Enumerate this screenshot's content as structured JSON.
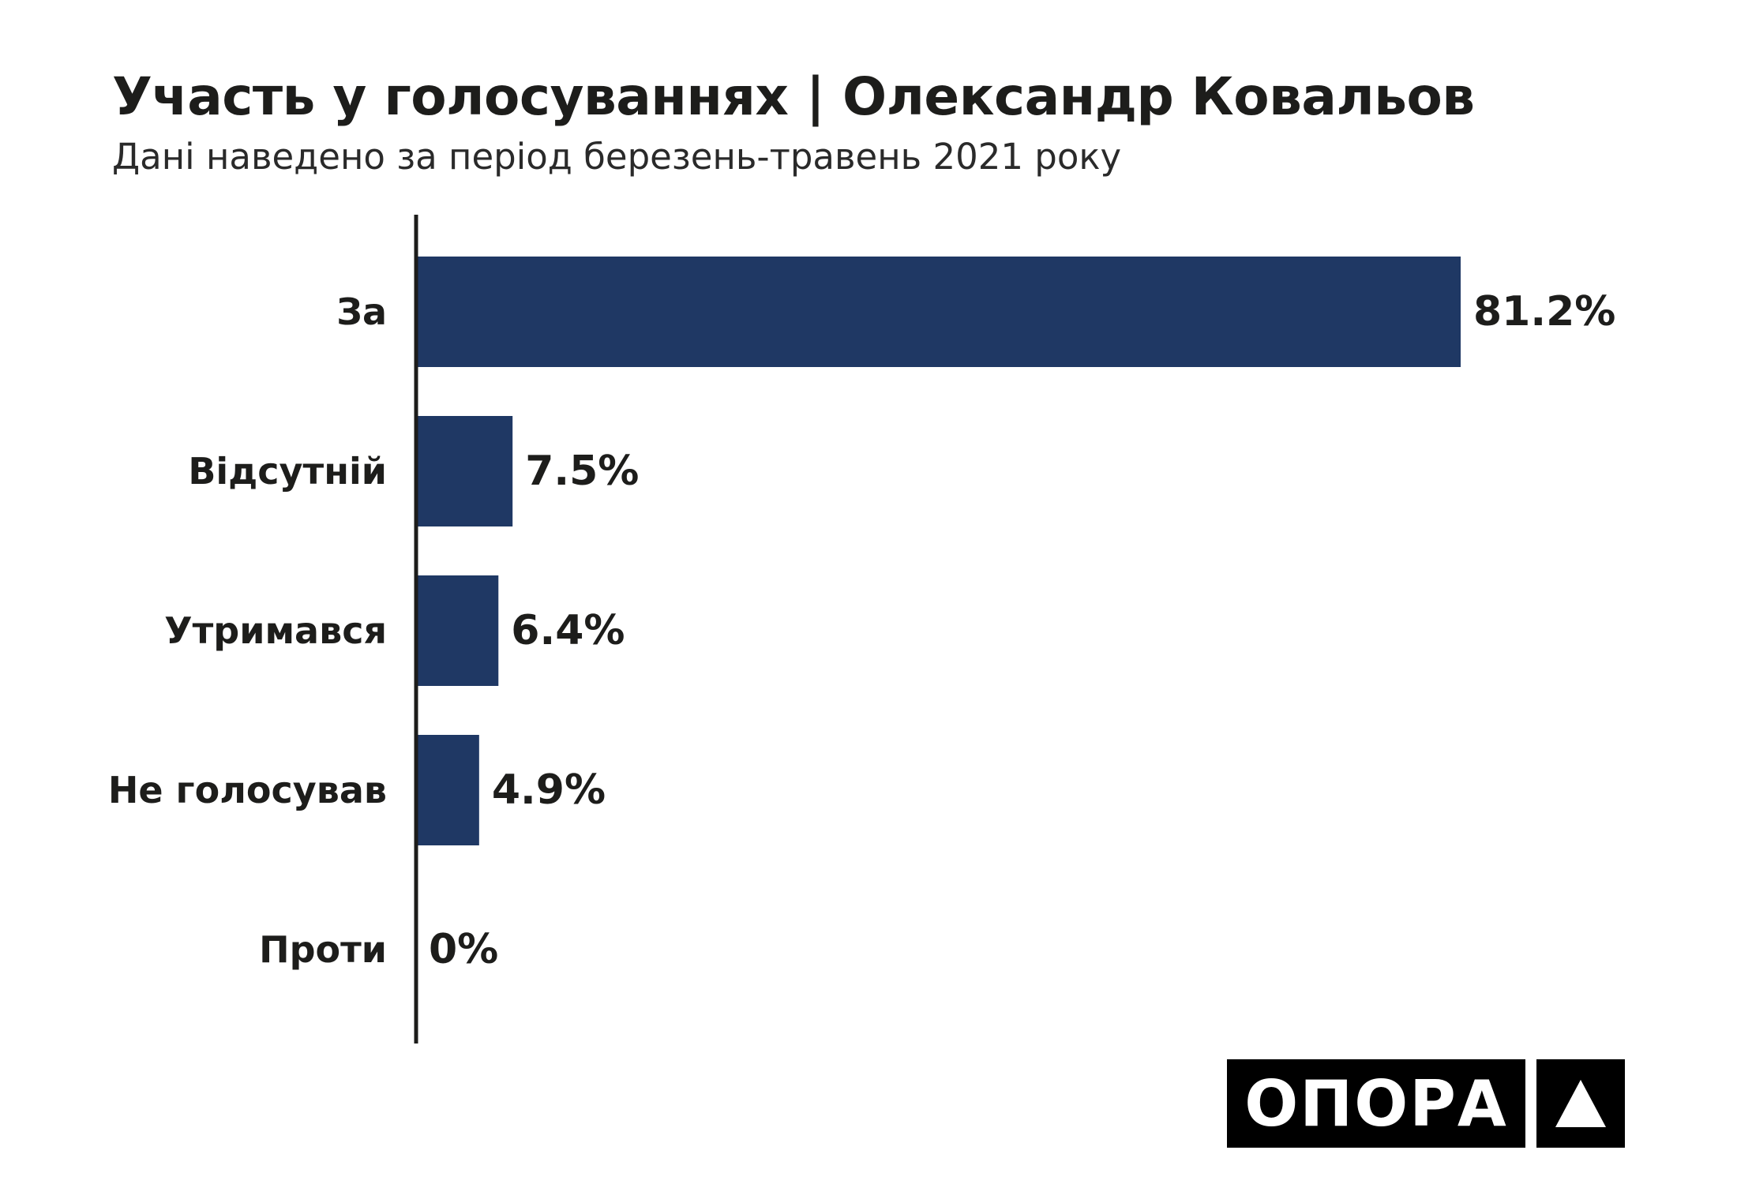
{
  "header": {
    "title": "Участь у голосуваннях | Олександр Ковальов",
    "subtitle": "Дані наведено за період березень-травень 2021 року"
  },
  "chart_data": {
    "type": "bar",
    "orientation": "horizontal",
    "title": "Участь у голосуваннях | Олександр Ковальов",
    "subtitle": "Дані наведено за період березень-травень 2021 року",
    "categories": [
      "За",
      "Відсутній",
      "Утримався",
      "Не голосував",
      "Проти"
    ],
    "values": [
      81.2,
      7.5,
      6.4,
      4.9,
      0
    ],
    "value_labels": [
      "81.2%",
      "7.5%",
      "6.4%",
      "4.9%",
      "0%"
    ],
    "unit": "%",
    "xlim": [
      0,
      100
    ],
    "grid": false,
    "legend": "none",
    "bar_color": "#1f3864",
    "axis_color": "#1d1d1b"
  },
  "logo": {
    "text": "ОПОРА",
    "mark_icon": "triangle-icon",
    "background": "#000000",
    "foreground": "#ffffff"
  }
}
